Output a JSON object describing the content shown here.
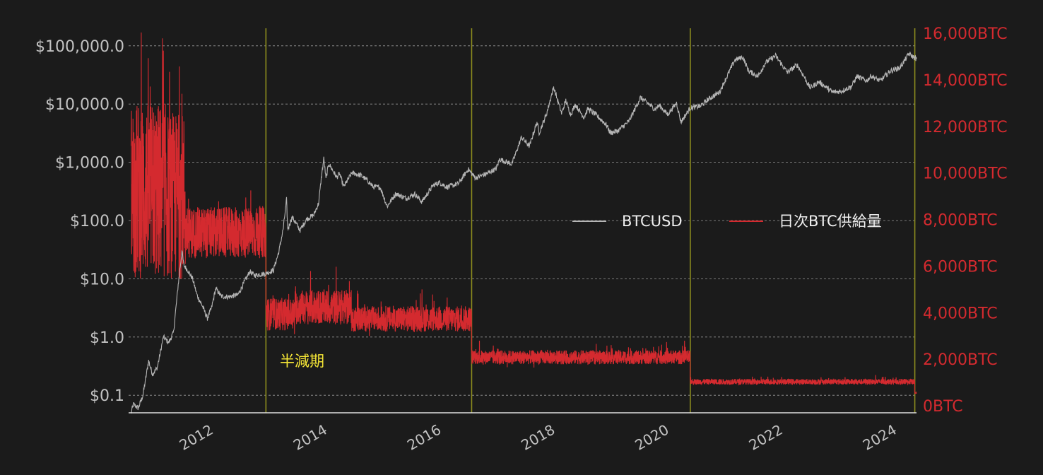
{
  "chart_data": {
    "type": "line",
    "title": "",
    "x_ticks": [
      "2012",
      "2014",
      "2016",
      "2018",
      "2020",
      "2022",
      "2024"
    ],
    "x_range": [
      "2010-07-01",
      "2024-05-01"
    ],
    "y_left": {
      "scale": "log",
      "range": [
        0.05,
        200000
      ],
      "ticks": [
        0.1,
        1,
        10,
        100,
        1000,
        10000,
        100000
      ],
      "tick_labels": [
        "$0.1",
        "$1.0",
        "$10.0",
        "$100.0",
        "$1,000.0",
        "$10,000.0",
        "$100,000.0"
      ]
    },
    "y_right": {
      "scale": "linear",
      "range": [
        0,
        16000
      ],
      "ticks": [
        0,
        2000,
        4000,
        6000,
        8000,
        10000,
        12000,
        14000,
        16000
      ],
      "tick_labels": [
        "0BTC",
        "2,000BTC",
        "4,000BTC",
        "6,000BTC",
        "8,000BTC",
        "10,000BTC",
        "12,000BTC",
        "14,000BTC",
        "16,000BTC"
      ]
    },
    "grid": true,
    "legend_position": "right-middle",
    "annotation": "半減期",
    "halvings": [
      "2012-11-28",
      "2016-07-09",
      "2020-05-11",
      "2024-04-20"
    ],
    "series": [
      {
        "name": "BTCUSD",
        "axis": "left",
        "color": "#b5b5b5",
        "points": [
          [
            "2010-07-17",
            0.05
          ],
          [
            "2010-08-01",
            0.07
          ],
          [
            "2010-09-01",
            0.06
          ],
          [
            "2010-10-01",
            0.1
          ],
          [
            "2010-11-06",
            0.39
          ],
          [
            "2010-12-01",
            0.23
          ],
          [
            "2011-01-01",
            0.3
          ],
          [
            "2011-02-09",
            1.0
          ],
          [
            "2011-03-15",
            0.8
          ],
          [
            "2011-04-15",
            1.2
          ],
          [
            "2011-05-15",
            8.0
          ],
          [
            "2011-06-08",
            29.6
          ],
          [
            "2011-06-20",
            17.0
          ],
          [
            "2011-07-15",
            14.0
          ],
          [
            "2011-08-15",
            10.0
          ],
          [
            "2011-09-15",
            5.0
          ],
          [
            "2011-10-15",
            3.5
          ],
          [
            "2011-11-18",
            2.1
          ],
          [
            "2011-12-15",
            3.2
          ],
          [
            "2012-01-10",
            6.8
          ],
          [
            "2012-02-15",
            5.0
          ],
          [
            "2012-04-01",
            4.9
          ],
          [
            "2012-06-01",
            5.3
          ],
          [
            "2012-08-16",
            13.3
          ],
          [
            "2012-09-15",
            11.5
          ],
          [
            "2012-11-28",
            12.3
          ],
          [
            "2013-01-15",
            14.0
          ],
          [
            "2013-02-20",
            30.0
          ],
          [
            "2013-03-20",
            75.0
          ],
          [
            "2013-04-09",
            230.0
          ],
          [
            "2013-04-17",
            70.0
          ],
          [
            "2013-05-15",
            115.0
          ],
          [
            "2013-07-05",
            68.0
          ],
          [
            "2013-08-15",
            105.0
          ],
          [
            "2013-10-01",
            125.0
          ],
          [
            "2013-11-01",
            200.0
          ],
          [
            "2013-11-20",
            600.0
          ],
          [
            "2013-12-04",
            1150.0
          ],
          [
            "2013-12-18",
            520.0
          ],
          [
            "2014-01-05",
            950.0
          ],
          [
            "2014-02-25",
            550.0
          ],
          [
            "2014-03-15",
            640.0
          ],
          [
            "2014-04-10",
            380.0
          ],
          [
            "2014-06-03",
            660.0
          ],
          [
            "2014-08-01",
            590.0
          ],
          [
            "2014-09-15",
            470.0
          ],
          [
            "2014-10-15",
            380.0
          ],
          [
            "2014-12-01",
            370.0
          ],
          [
            "2015-01-14",
            175.0
          ],
          [
            "2015-03-10",
            290.0
          ],
          [
            "2015-05-15",
            240.0
          ],
          [
            "2015-07-10",
            285.0
          ],
          [
            "2015-08-25",
            210.0
          ],
          [
            "2015-11-04",
            400.0
          ],
          [
            "2015-12-15",
            450.0
          ],
          [
            "2016-02-01",
            375.0
          ],
          [
            "2016-04-15",
            430.0
          ],
          [
            "2016-06-17",
            760.0
          ],
          [
            "2016-08-02",
            540.0
          ],
          [
            "2016-10-15",
            640.0
          ],
          [
            "2016-12-15",
            780.0
          ],
          [
            "2017-01-04",
            1130.0
          ],
          [
            "2017-03-25",
            930.0
          ],
          [
            "2017-05-25",
            2700.0
          ],
          [
            "2017-07-15",
            1900.0
          ],
          [
            "2017-09-01",
            4900.0
          ],
          [
            "2017-09-15",
            3200.0
          ],
          [
            "2017-11-01",
            6700.0
          ],
          [
            "2017-12-17",
            19500.0
          ],
          [
            "2018-02-06",
            6900.0
          ],
          [
            "2018-03-05",
            11500.0
          ],
          [
            "2018-04-05",
            6600.0
          ],
          [
            "2018-05-05",
            9800.0
          ],
          [
            "2018-06-29",
            5900.0
          ],
          [
            "2018-07-25",
            8300.0
          ],
          [
            "2018-09-15",
            6500.0
          ],
          [
            "2018-11-20",
            4400.0
          ],
          [
            "2018-12-15",
            3200.0
          ],
          [
            "2019-02-01",
            3450.0
          ],
          [
            "2019-04-15",
            5100.0
          ],
          [
            "2019-06-26",
            12900.0
          ],
          [
            "2019-08-15",
            10200.0
          ],
          [
            "2019-09-25",
            8200.0
          ],
          [
            "2019-10-27",
            9500.0
          ],
          [
            "2019-12-17",
            6600.0
          ],
          [
            "2020-02-13",
            10400.0
          ],
          [
            "2020-03-12",
            4900.0
          ],
          [
            "2020-05-11",
            8600.0
          ],
          [
            "2020-07-15",
            9200.0
          ],
          [
            "2020-09-01",
            11900.0
          ],
          [
            "2020-11-15",
            16000.0
          ],
          [
            "2020-12-31",
            29000.0
          ],
          [
            "2021-02-21",
            57000.0
          ],
          [
            "2021-04-14",
            64000.0
          ],
          [
            "2021-05-20",
            37000.0
          ],
          [
            "2021-07-20",
            30000.0
          ],
          [
            "2021-09-05",
            51000.0
          ],
          [
            "2021-11-09",
            67500.0
          ],
          [
            "2022-01-24",
            35000.0
          ],
          [
            "2022-03-28",
            47000.0
          ],
          [
            "2022-05-10",
            30000.0
          ],
          [
            "2022-06-18",
            19000.0
          ],
          [
            "2022-08-15",
            24000.0
          ],
          [
            "2022-11-10",
            16000.0
          ],
          [
            "2022-12-31",
            16500.0
          ],
          [
            "2023-03-10",
            20000.0
          ],
          [
            "2023-04-15",
            30000.0
          ],
          [
            "2023-06-15",
            25000.0
          ],
          [
            "2023-07-15",
            30500.0
          ],
          [
            "2023-09-11",
            25000.0
          ],
          [
            "2023-11-15",
            37000.0
          ],
          [
            "2024-01-15",
            42000.0
          ],
          [
            "2024-03-14",
            73000.0
          ],
          [
            "2024-04-15",
            63000.0
          ],
          [
            "2024-05-01",
            60000.0
          ]
        ]
      },
      {
        "name": "日次BTC供給量",
        "axis": "right",
        "color": "#d42a2f",
        "note": "dense daily noise band reproduced around these center levels",
        "bands": [
          {
            "from": "2010-07-17",
            "to": "2011-03-01",
            "center": 9200,
            "spread": 3800
          },
          {
            "from": "2011-03-01",
            "to": "2011-07-01",
            "center": 9000,
            "spread": 3600
          },
          {
            "from": "2011-07-01",
            "to": "2012-11-28",
            "center": 7400,
            "spread": 1100
          },
          {
            "from": "2012-11-28",
            "to": "2013-06-01",
            "center": 3900,
            "spread": 700
          },
          {
            "from": "2013-06-01",
            "to": "2014-06-01",
            "center": 4200,
            "spread": 750
          },
          {
            "from": "2014-06-01",
            "to": "2016-07-09",
            "center": 3700,
            "spread": 550
          },
          {
            "from": "2016-07-09",
            "to": "2020-05-11",
            "center": 2050,
            "spread": 300
          },
          {
            "from": "2020-05-11",
            "to": "2024-04-20",
            "center": 1000,
            "spread": 120
          },
          {
            "from": "2024-04-20",
            "to": "2024-05-01",
            "center": 520,
            "spread": 60
          }
        ]
      }
    ]
  }
}
